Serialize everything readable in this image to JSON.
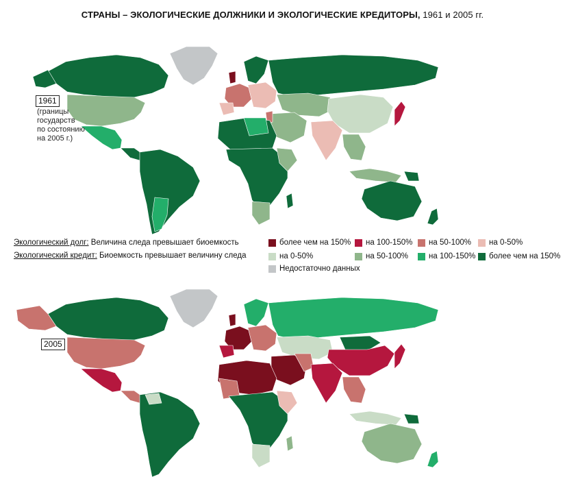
{
  "title": {
    "main": "СТРАНЫ – ЭКОЛОГИЧЕСКИЕ ДОЛЖНИКИ И ЭКОЛОГИЧЕСКИЕ КРЕДИТОРЫ,",
    "years": "1961 и 2005 гг."
  },
  "map1961": {
    "year": "1961",
    "note": [
      "(границы",
      "государств",
      "по состоянию",
      "на 2005 г.)"
    ]
  },
  "map2005": {
    "year": "2005"
  },
  "legend": {
    "debt_label": "Экологический долг:",
    "debt_text": " Величина следа превышает биоемкость",
    "credit_label": "Экологический кредит:",
    "credit_text": " Биоемкость превышает величину следа",
    "debt_items": [
      {
        "label": "более чем на 150%",
        "color": "#7a0f1e"
      },
      {
        "label": "на 100-150%",
        "color": "#b5173e"
      },
      {
        "label": "на 50-100%",
        "color": "#c8736e"
      },
      {
        "label": "на 0-50%",
        "color": "#ebbcb4"
      }
    ],
    "credit_items": [
      {
        "label": "на 0-50%",
        "color": "#c9dcc6"
      },
      {
        "label": "на 50-100%",
        "color": "#8fb68b"
      },
      {
        "label": "на 100-150%",
        "color": "#23ae6a"
      },
      {
        "label": "более чем на 150%",
        "color": "#0f6b3b"
      }
    ],
    "nodata": {
      "label": "Недостаточно данных",
      "color": "#c3c6c8"
    }
  },
  "colors": {
    "debt150": "#7a0f1e",
    "debt100": "#b5173e",
    "debt50": "#c8736e",
    "debt0": "#ebbcb4",
    "cred0": "#c9dcc6",
    "cred50": "#8fb68b",
    "cred100": "#23ae6a",
    "cred150": "#0f6b3b",
    "nodata": "#c3c6c8"
  }
}
